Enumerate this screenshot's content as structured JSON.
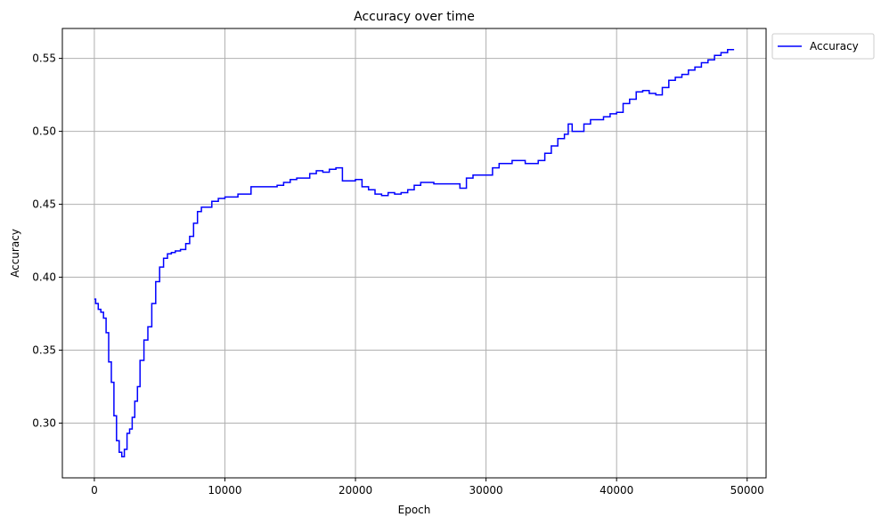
{
  "chart_data": {
    "type": "line",
    "title": "Accuracy over time",
    "xlabel": "Epoch",
    "ylabel": "Accuracy",
    "xlim": [
      -2450,
      51450
    ],
    "ylim": [
      0.2625,
      0.5705
    ],
    "xticks": [
      0,
      10000,
      20000,
      30000,
      40000,
      50000
    ],
    "xtick_labels": [
      "0",
      "10000",
      "20000",
      "30000",
      "40000",
      "50000"
    ],
    "yticks": [
      0.3,
      0.35,
      0.4,
      0.45,
      0.5,
      0.55
    ],
    "ytick_labels": [
      "0.30",
      "0.35",
      "0.40",
      "0.45",
      "0.50",
      "0.55"
    ],
    "grid": true,
    "legend_position": "outside-top-right",
    "series": [
      {
        "name": "Accuracy",
        "color": "#0000ff",
        "x": [
          0,
          100,
          300,
          500,
          700,
          900,
          1100,
          1300,
          1500,
          1700,
          1900,
          2100,
          2300,
          2500,
          2700,
          2900,
          3100,
          3300,
          3500,
          3800,
          4100,
          4400,
          4700,
          5000,
          5300,
          5600,
          5900,
          6200,
          6600,
          7000,
          7300,
          7600,
          7900,
          8200,
          8600,
          9000,
          9500,
          10000,
          11000,
          12000,
          13000,
          14000,
          14500,
          15000,
          15500,
          16000,
          16500,
          17000,
          17500,
          18000,
          18500,
          19000,
          19500,
          20000,
          20500,
          21000,
          21500,
          22000,
          22500,
          23000,
          23500,
          24000,
          24500,
          25000,
          26000,
          27000,
          28000,
          28500,
          29000,
          29500,
          30000,
          30500,
          31000,
          32000,
          33000,
          34000,
          34500,
          35000,
          35500,
          36000,
          36300,
          36600,
          37000,
          37500,
          38000,
          38500,
          39000,
          39500,
          40000,
          40500,
          41000,
          41500,
          42000,
          42500,
          43000,
          43500,
          44000,
          44500,
          45000,
          45500,
          46000,
          46500,
          47000,
          47500,
          48000,
          48500,
          49000
        ],
        "y": [
          0.385,
          0.382,
          0.378,
          0.376,
          0.372,
          0.362,
          0.342,
          0.328,
          0.305,
          0.288,
          0.28,
          0.277,
          0.282,
          0.293,
          0.296,
          0.304,
          0.315,
          0.325,
          0.343,
          0.357,
          0.366,
          0.382,
          0.397,
          0.407,
          0.413,
          0.416,
          0.417,
          0.418,
          0.419,
          0.423,
          0.428,
          0.437,
          0.445,
          0.448,
          0.448,
          0.452,
          0.454,
          0.455,
          0.457,
          0.462,
          0.462,
          0.463,
          0.465,
          0.467,
          0.468,
          0.468,
          0.471,
          0.473,
          0.472,
          0.474,
          0.475,
          0.466,
          0.466,
          0.467,
          0.462,
          0.46,
          0.457,
          0.456,
          0.458,
          0.457,
          0.458,
          0.46,
          0.463,
          0.465,
          0.464,
          0.464,
          0.461,
          0.468,
          0.47,
          0.47,
          0.47,
          0.475,
          0.478,
          0.48,
          0.478,
          0.48,
          0.485,
          0.49,
          0.495,
          0.498,
          0.505,
          0.5,
          0.5,
          0.505,
          0.508,
          0.508,
          0.51,
          0.512,
          0.513,
          0.519,
          0.522,
          0.527,
          0.528,
          0.526,
          0.525,
          0.53,
          0.535,
          0.537,
          0.539,
          0.542,
          0.544,
          0.547,
          0.549,
          0.552,
          0.554,
          0.556,
          0.556
        ]
      }
    ]
  }
}
